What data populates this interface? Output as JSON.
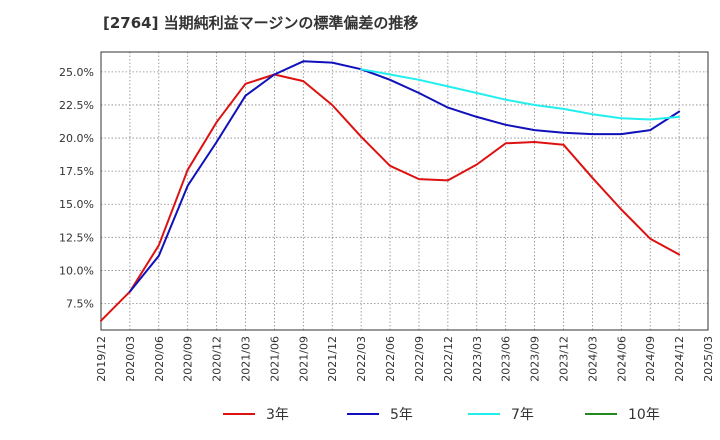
{
  "chart_data": {
    "type": "line",
    "title": "[2764]  当期純利益マージンの標準偏差の推移",
    "xlabel": "",
    "ylabel": "",
    "x_ticks": [
      "2019/12",
      "2020/03",
      "2020/06",
      "2020/09",
      "2020/12",
      "2021/03",
      "2021/06",
      "2021/09",
      "2021/12",
      "2022/03",
      "2022/06",
      "2022/09",
      "2022/12",
      "2023/03",
      "2023/06",
      "2023/09",
      "2023/12",
      "2024/03",
      "2024/06",
      "2024/09",
      "2024/12",
      "2025/03"
    ],
    "y_ticks": [
      "7.5%",
      "10.0%",
      "12.5%",
      "15.0%",
      "17.5%",
      "20.0%",
      "22.5%",
      "25.0%"
    ],
    "ylim": [
      5.5,
      26.5
    ],
    "grid": true,
    "legend_position": "bottom",
    "series": [
      {
        "name": "3年",
        "color": "#dd1111",
        "points": [
          [
            "2019/12",
            6.2
          ],
          [
            "2020/03",
            8.4
          ],
          [
            "2020/06",
            11.9
          ],
          [
            "2020/09",
            17.6
          ],
          [
            "2020/12",
            21.2
          ],
          [
            "2021/03",
            24.1
          ],
          [
            "2021/06",
            24.8
          ],
          [
            "2021/09",
            24.3
          ],
          [
            "2021/12",
            22.5
          ],
          [
            "2022/03",
            20.1
          ],
          [
            "2022/06",
            17.9
          ],
          [
            "2022/09",
            16.9
          ],
          [
            "2022/12",
            16.8
          ],
          [
            "2023/03",
            18.0
          ],
          [
            "2023/06",
            19.6
          ],
          [
            "2023/09",
            19.7
          ],
          [
            "2023/12",
            19.5
          ],
          [
            "2024/03",
            17.0
          ],
          [
            "2024/06",
            14.6
          ],
          [
            "2024/09",
            12.4
          ],
          [
            "2024/12",
            11.2
          ]
        ]
      },
      {
        "name": "5年",
        "color": "#1111bb",
        "points": [
          [
            "2020/03",
            8.4
          ],
          [
            "2020/06",
            11.1
          ],
          [
            "2020/09",
            16.4
          ],
          [
            "2020/12",
            19.7
          ],
          [
            "2021/03",
            23.2
          ],
          [
            "2021/06",
            24.8
          ],
          [
            "2021/09",
            25.8
          ],
          [
            "2021/12",
            25.7
          ],
          [
            "2022/03",
            25.2
          ],
          [
            "2022/06",
            24.4
          ],
          [
            "2022/09",
            23.4
          ],
          [
            "2022/12",
            22.3
          ],
          [
            "2023/03",
            21.6
          ],
          [
            "2023/06",
            21.0
          ],
          [
            "2023/09",
            20.6
          ],
          [
            "2023/12",
            20.4
          ],
          [
            "2024/03",
            20.3
          ],
          [
            "2024/06",
            20.3
          ],
          [
            "2024/09",
            20.6
          ],
          [
            "2024/12",
            22.0
          ]
        ]
      },
      {
        "name": "7年",
        "color": "#22eeee",
        "points": [
          [
            "2022/03",
            25.2
          ],
          [
            "2022/06",
            24.8
          ],
          [
            "2022/09",
            24.4
          ],
          [
            "2022/12",
            23.9
          ],
          [
            "2023/03",
            23.4
          ],
          [
            "2023/06",
            22.9
          ],
          [
            "2023/09",
            22.5
          ],
          [
            "2023/12",
            22.2
          ],
          [
            "2024/03",
            21.8
          ],
          [
            "2024/06",
            21.5
          ],
          [
            "2024/09",
            21.4
          ],
          [
            "2024/12",
            21.6
          ]
        ]
      },
      {
        "name": "10年",
        "color": "#228822",
        "points": []
      }
    ]
  }
}
